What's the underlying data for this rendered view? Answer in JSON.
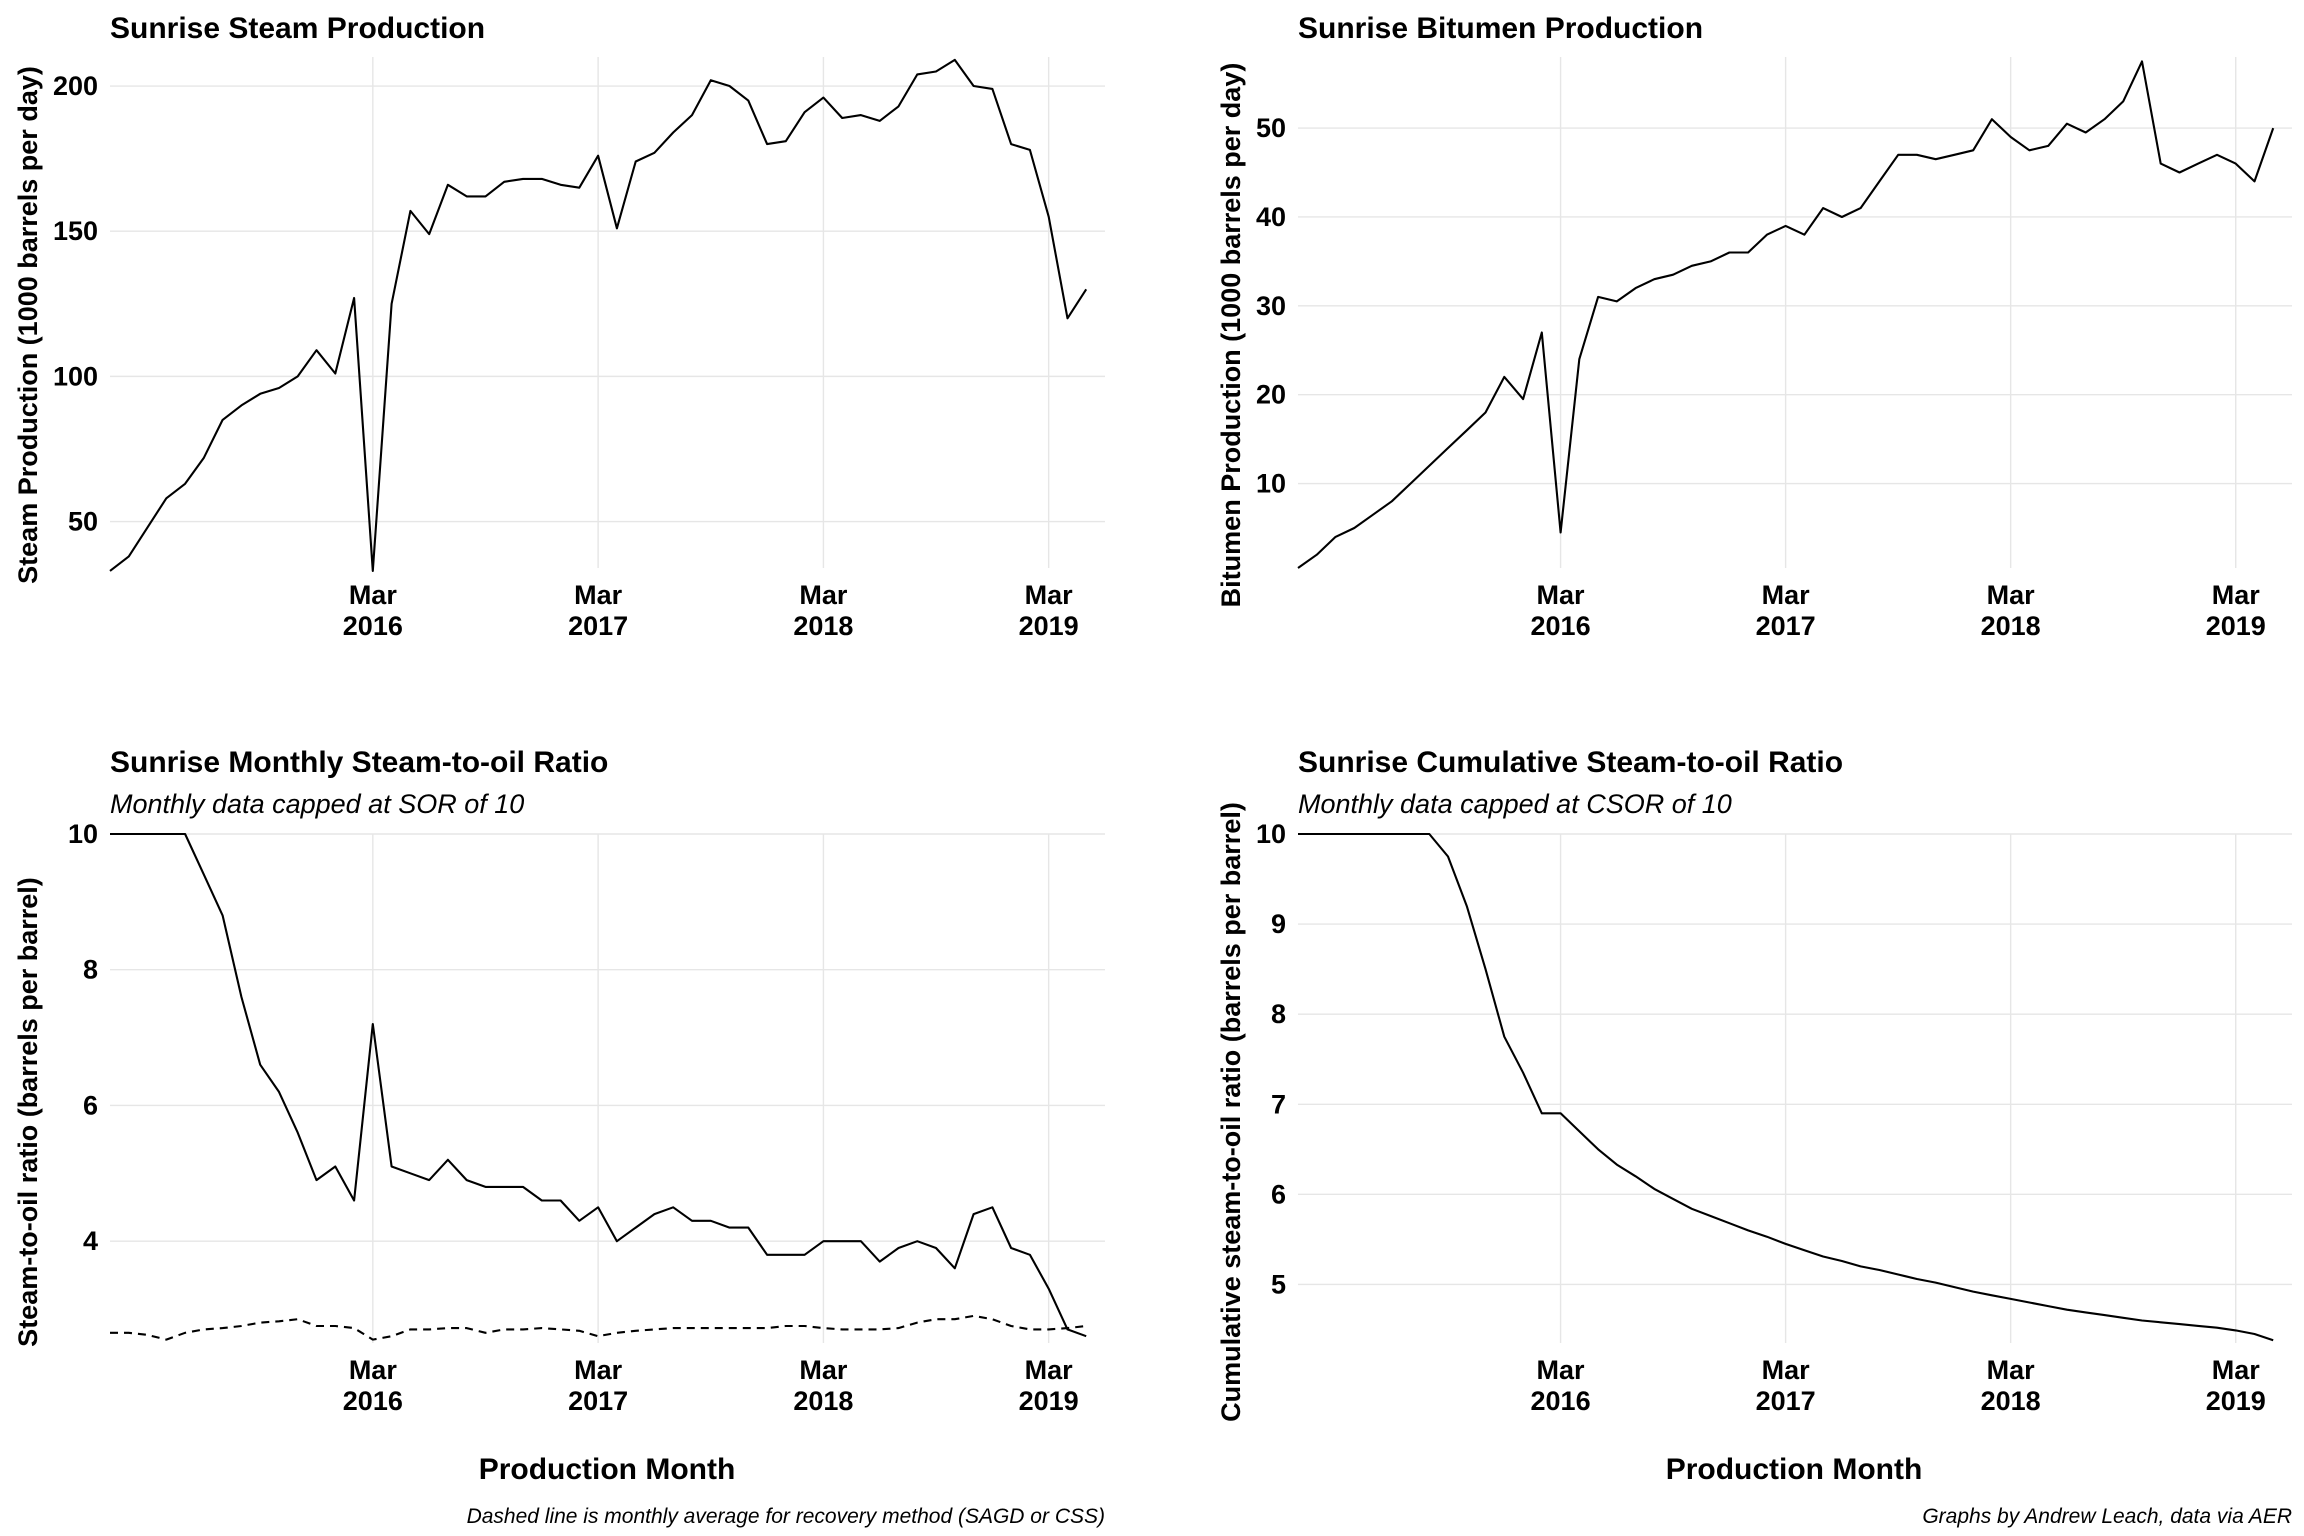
{
  "chart_data": [
    {
      "type": "line",
      "title": "Sunrise Steam Production",
      "subtitle": "",
      "xlabel": "",
      "ylabel": "Steam Production (1000 barrels per day)",
      "xlim": [
        "2015-01",
        "2019-06"
      ],
      "ylim": [
        34,
        210
      ],
      "ytick_values": [
        50,
        100,
        150,
        200
      ],
      "xtick_months": [
        "2016-03",
        "2017-03",
        "2018-03",
        "2019-03"
      ],
      "xtick_labels": [
        [
          "Mar",
          "2016"
        ],
        [
          "Mar",
          "2017"
        ],
        [
          "Mar",
          "2018"
        ],
        [
          "Mar",
          "2019"
        ]
      ],
      "grid": true,
      "legend": "none",
      "x_start": "2015-01",
      "series": [
        {
          "style": "solid",
          "values": [
            33,
            38,
            48,
            58,
            63,
            72,
            85,
            90,
            94,
            96,
            100,
            109,
            101,
            127,
            33,
            125,
            157,
            149,
            166,
            162,
            162,
            167,
            168,
            168,
            166,
            165,
            176,
            151,
            174,
            177,
            184,
            190,
            202,
            200,
            195,
            180,
            181,
            191,
            196,
            189,
            190,
            188,
            193,
            204,
            205,
            209,
            200,
            199,
            180,
            178,
            155,
            120,
            130
          ]
        }
      ]
    },
    {
      "type": "line",
      "title": "Sunrise Bitumen Production",
      "subtitle": "",
      "xlabel": "",
      "ylabel": "Bitumen Production (1000 barrels per day)",
      "xlim": [
        "2015-01",
        "2019-06"
      ],
      "ylim": [
        0.5,
        58
      ],
      "ytick_values": [
        10,
        20,
        30,
        40,
        50
      ],
      "xtick_months": [
        "2016-03",
        "2017-03",
        "2018-03",
        "2019-03"
      ],
      "xtick_labels": [
        [
          "Mar",
          "2016"
        ],
        [
          "Mar",
          "2017"
        ],
        [
          "Mar",
          "2018"
        ],
        [
          "Mar",
          "2019"
        ]
      ],
      "grid": true,
      "legend": "none",
      "x_start": "2015-01",
      "series": [
        {
          "style": "solid",
          "values": [
            0.5,
            2,
            4,
            5,
            6.5,
            8,
            10,
            12,
            14,
            16,
            18,
            22,
            19.5,
            27,
            4.5,
            24,
            31,
            30.5,
            32,
            33,
            33.5,
            34.5,
            35,
            36,
            36,
            38,
            39,
            38,
            41,
            40,
            41,
            44,
            47,
            47,
            46.5,
            47,
            47.5,
            51,
            49,
            47.5,
            48,
            50.5,
            49.5,
            51,
            53,
            57.5,
            46,
            45,
            46,
            47,
            46,
            44,
            50
          ]
        }
      ]
    },
    {
      "type": "line",
      "title": "Sunrise Monthly Steam-to-oil Ratio",
      "subtitle": "Monthly data capped at SOR of 10",
      "xlabel": "Production Month",
      "ylabel": "Steam-to-oil ratio (barrels per barrel)",
      "xlim": [
        "2015-01",
        "2019-06"
      ],
      "ylim": [
        2.5,
        10
      ],
      "ytick_values": [
        4,
        6,
        8,
        10
      ],
      "xtick_months": [
        "2016-03",
        "2017-03",
        "2018-03",
        "2019-03"
      ],
      "xtick_labels": [
        [
          "Mar",
          "2016"
        ],
        [
          "Mar",
          "2017"
        ],
        [
          "Mar",
          "2018"
        ],
        [
          "Mar",
          "2019"
        ]
      ],
      "grid": true,
      "legend": "none",
      "caption": "Dashed line is monthly average for recovery method (SAGD or CSS)",
      "x_start": "2015-01",
      "series": [
        {
          "style": "solid",
          "values": [
            10,
            10,
            10,
            10,
            10,
            9.4,
            8.8,
            7.6,
            6.6,
            6.2,
            5.6,
            4.9,
            5.1,
            4.6,
            7.2,
            5.1,
            5.0,
            4.9,
            5.2,
            4.9,
            4.8,
            4.8,
            4.8,
            4.6,
            4.6,
            4.3,
            4.5,
            4.0,
            4.2,
            4.4,
            4.5,
            4.3,
            4.3,
            4.2,
            4.2,
            3.8,
            3.8,
            3.8,
            4.0,
            4.0,
            4.0,
            3.7,
            3.9,
            4.0,
            3.9,
            3.6,
            4.4,
            4.5,
            3.9,
            3.8,
            3.3,
            2.7,
            2.6
          ]
        },
        {
          "style": "dashed",
          "values": [
            2.65,
            2.65,
            2.62,
            2.55,
            2.65,
            2.7,
            2.72,
            2.75,
            2.8,
            2.82,
            2.85,
            2.75,
            2.75,
            2.72,
            2.55,
            2.6,
            2.7,
            2.7,
            2.72,
            2.72,
            2.65,
            2.7,
            2.7,
            2.72,
            2.7,
            2.68,
            2.6,
            2.65,
            2.68,
            2.7,
            2.72,
            2.72,
            2.72,
            2.72,
            2.72,
            2.72,
            2.75,
            2.75,
            2.72,
            2.7,
            2.7,
            2.7,
            2.72,
            2.8,
            2.85,
            2.85,
            2.9,
            2.85,
            2.75,
            2.7,
            2.7,
            2.72,
            2.75
          ]
        }
      ]
    },
    {
      "type": "line",
      "title": "Sunrise Cumulative Steam-to-oil Ratio",
      "subtitle": "Monthly data capped at CSOR of 10",
      "xlabel": "Production Month",
      "ylabel": "Cumulative steam-to-oil ratio (barrels per barrel)",
      "xlim": [
        "2015-01",
        "2019-06"
      ],
      "ylim": [
        4.35,
        10
      ],
      "ytick_values": [
        5,
        6,
        7,
        8,
        9,
        10
      ],
      "xtick_months": [
        "2016-03",
        "2017-03",
        "2018-03",
        "2019-03"
      ],
      "xtick_labels": [
        [
          "Mar",
          "2016"
        ],
        [
          "Mar",
          "2017"
        ],
        [
          "Mar",
          "2018"
        ],
        [
          "Mar",
          "2019"
        ]
      ],
      "grid": true,
      "legend": "none",
      "caption": "Graphs by Andrew Leach, data via AER",
      "x_start": "2015-01",
      "series": [
        {
          "style": "solid",
          "values": [
            10,
            10,
            10,
            10,
            10,
            10,
            10,
            10,
            9.75,
            9.2,
            8.5,
            7.75,
            7.35,
            6.9,
            6.9,
            6.7,
            6.5,
            6.33,
            6.2,
            6.06,
            5.95,
            5.84,
            5.76,
            5.68,
            5.6,
            5.53,
            5.45,
            5.38,
            5.31,
            5.26,
            5.2,
            5.16,
            5.11,
            5.06,
            5.02,
            4.97,
            4.92,
            4.88,
            4.84,
            4.8,
            4.76,
            4.72,
            4.69,
            4.66,
            4.63,
            4.6,
            4.58,
            4.56,
            4.54,
            4.52,
            4.49,
            4.45,
            4.38
          ]
        }
      ]
    }
  ]
}
